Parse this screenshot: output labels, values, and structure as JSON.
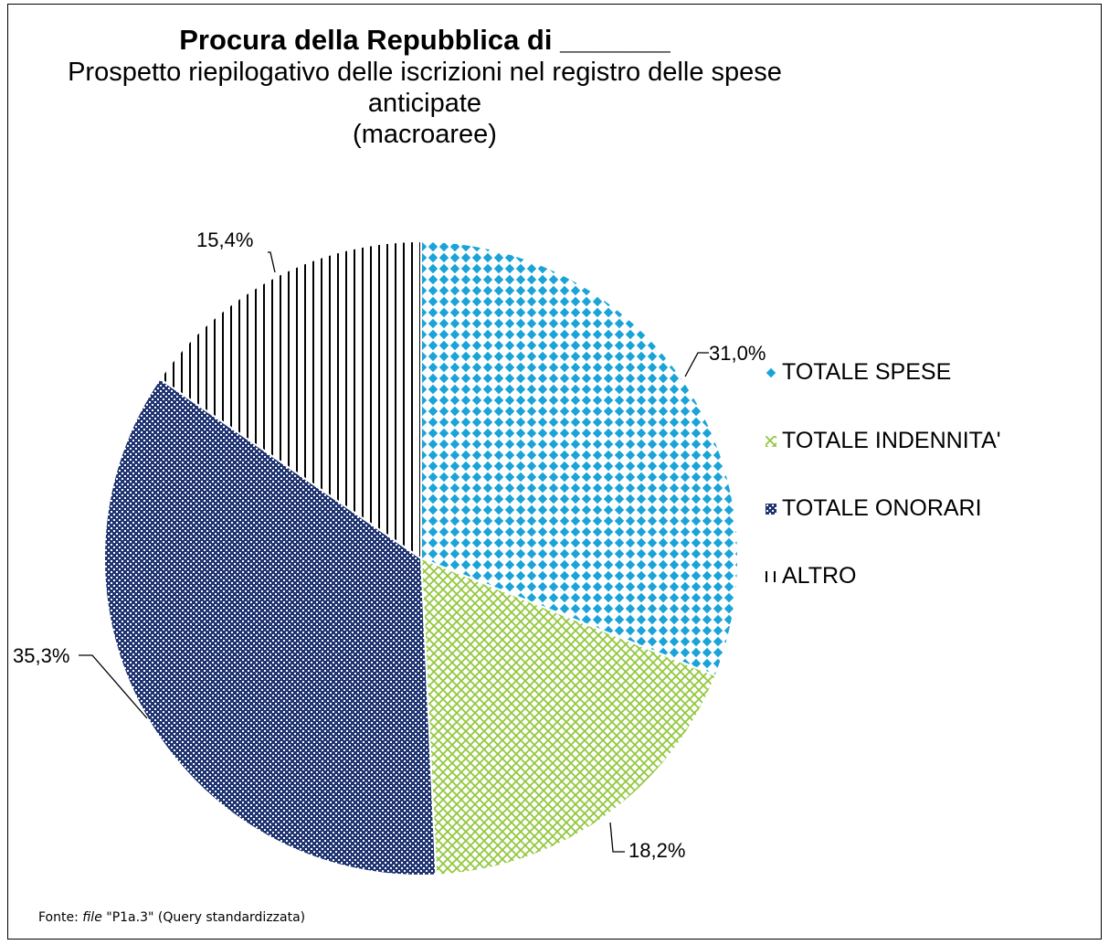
{
  "chart_data": {
    "type": "pie",
    "title": "Procura della Repubblica di _______",
    "subtitle_lines": [
      "Prospetto riepilogativo delle iscrizioni nel registro delle spese",
      "anticipate",
      "(macroaree)"
    ],
    "slices": [
      {
        "name": "TOTALE SPESE",
        "value": 31.0,
        "label": "31,0%",
        "color": "#1aa3d8"
      },
      {
        "name": "TOTALE INDENNITA'",
        "value": 18.2,
        "label": "18,2%",
        "color": "#92c83e"
      },
      {
        "name": "TOTALE ONORARI",
        "value": 35.3,
        "label": "35,3%",
        "color": "#1f3470"
      },
      {
        "name": "ALTRO",
        "value": 15.4,
        "label": "15,4%",
        "color": "#000000"
      }
    ],
    "legend_position": "right"
  },
  "footnote": {
    "prefix": "Fonte: ",
    "file_word": "file",
    "rest": " \"P1a.3\" (Query standardizzata)"
  }
}
